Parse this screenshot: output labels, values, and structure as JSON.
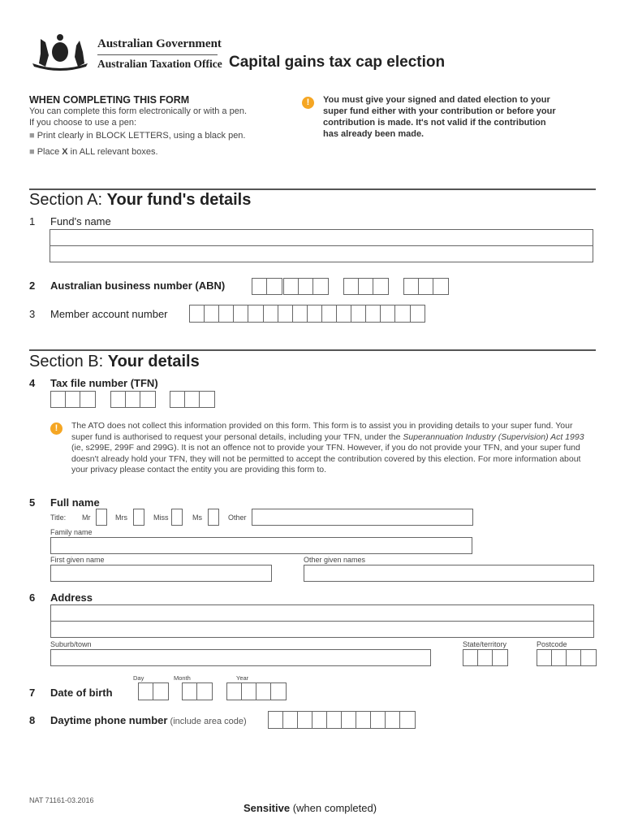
{
  "header": {
    "gov": "Australian Government",
    "ato": "Australian Taxation Office",
    "title": "Capital gains tax cap election",
    "coat_of_arms": "Commonwealth Coat of Arms"
  },
  "intro": {
    "heading": "WHEN COMPLETING THIS FORM",
    "line1": "You can complete this form electronically or with a pen.",
    "line2": "If you choose to use a pen:",
    "bullet1": "Print clearly in BLOCK LETTERS, using a black pen.",
    "bullet2_pre": "Place ",
    "bullet2_x": "X",
    "bullet2_post": " in ALL relevant boxes.",
    "notice": "You must give your signed and dated election to your super fund either with your contribution or before your contribution is made. It's not valid if the contribution has already been made.",
    "warn_icon": "!"
  },
  "sectionA": {
    "prefix": "Section A: ",
    "title": "Your fund's details",
    "q1": {
      "num": "1",
      "label": "Fund's name"
    },
    "q2": {
      "num": "2",
      "label": "Australian business number (ABN)"
    },
    "q3": {
      "num": "3",
      "label": "Member account number"
    }
  },
  "sectionB": {
    "prefix": "Section B: ",
    "title": "Your details",
    "q4": {
      "num": "4",
      "label": "Tax file number (TFN)"
    },
    "privacy_1": "The ATO does not collect this information provided on this form. This form is to assist you in providing details to your super fund. Your super fund is authorised to request your personal details, including your TFN, under the ",
    "privacy_act": "Superannuation Industry (Supervision) Act 1993",
    "privacy_2": " (ie, s299E, 299F and 299G). It is not an offence not to provide your TFN. However, if you do not provide your TFN, and your super fund doesn't already hold your TFN, they will not be permitted to accept the contribution covered by this election. For more information about your privacy please contact the entity you are providing this form to.",
    "q5": {
      "num": "5",
      "label": "Full name",
      "title_label": "Title:",
      "mr": "Mr",
      "mrs": "Mrs",
      "miss": "Miss",
      "ms": "Ms",
      "other": "Other",
      "family": "Family name",
      "first": "First given name",
      "other_given": "Other given names"
    },
    "q6": {
      "num": "6",
      "label": "Address",
      "suburb": "Suburb/town",
      "state": "State/territory",
      "postcode": "Postcode"
    },
    "q7": {
      "num": "7",
      "label": "Date of birth",
      "day": "Day",
      "month": "Month",
      "year": "Year",
      "sep": "/"
    },
    "q8": {
      "num": "8",
      "label": "Daytime phone number",
      "hint": " (include area code)"
    }
  },
  "footer": {
    "code": "NAT 71161-03.2016",
    "sensitive": "Sensitive",
    "sensitive_note": " (when completed)"
  }
}
